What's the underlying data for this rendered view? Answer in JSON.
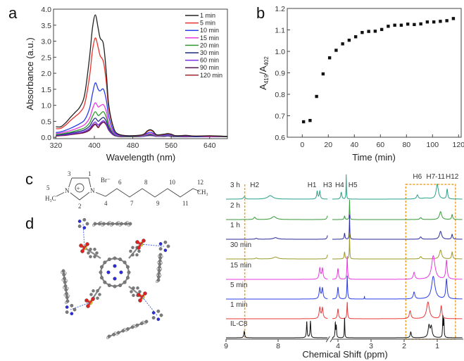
{
  "panel_labels": {
    "a": "a",
    "b": "b",
    "c": "c",
    "d": "d"
  },
  "chart_data": [
    {
      "id": "a",
      "type": "line",
      "xlabel": "Wavelength (nm)",
      "ylabel": "Absorbance (a.u.)",
      "xlim": [
        315,
        677
      ],
      "ylim": [
        -0.04,
        4.0
      ],
      "xticks": [
        320,
        400,
        480,
        560,
        640
      ],
      "yticks": [
        "0.0",
        "0.5",
        "1.0",
        "1.5",
        "2.0",
        "2.5",
        "3.0",
        "3.5",
        "4.0"
      ],
      "legend_position": "top-right",
      "x": [
        320,
        330,
        340,
        350,
        360,
        370,
        380,
        390,
        396,
        402,
        408,
        412,
        419,
        425,
        430,
        440,
        450,
        470,
        500,
        510,
        516,
        522,
        530,
        545,
        553,
        560,
        570,
        590,
        610,
        640,
        677
      ],
      "series": [
        {
          "name": "1 min",
          "color": "#222222",
          "values": [
            0.33,
            0.33,
            0.45,
            0.62,
            0.78,
            0.95,
            1.35,
            2.5,
            3.4,
            3.82,
            3.4,
            3.1,
            2.9,
            2.0,
            1.0,
            0.3,
            0.1,
            0.05,
            0.08,
            0.2,
            0.24,
            0.2,
            0.08,
            0.1,
            0.12,
            0.1,
            0.05,
            0.06,
            0.04,
            0.05,
            0.03
          ]
        },
        {
          "name": "5 min",
          "color": "#e8322e",
          "values": [
            0.27,
            0.28,
            0.38,
            0.52,
            0.65,
            0.78,
            1.05,
            1.9,
            2.7,
            3.1,
            2.8,
            2.55,
            2.35,
            1.7,
            0.9,
            0.28,
            0.1,
            0.05,
            0.07,
            0.18,
            0.22,
            0.18,
            0.07,
            0.09,
            0.11,
            0.09,
            0.05,
            0.06,
            0.04,
            0.04,
            0.03
          ]
        },
        {
          "name": "10 min",
          "color": "#2a3de8",
          "values": [
            0.15,
            0.17,
            0.22,
            0.28,
            0.35,
            0.43,
            0.55,
            0.9,
            1.35,
            1.7,
            1.5,
            1.45,
            1.5,
            1.15,
            0.65,
            0.2,
            0.08,
            0.04,
            0.06,
            0.13,
            0.16,
            0.13,
            0.06,
            0.07,
            0.08,
            0.07,
            0.04,
            0.05,
            0.03,
            0.04,
            0.03
          ]
        },
        {
          "name": "15 min",
          "color": "#e83ae0",
          "values": [
            0.12,
            0.13,
            0.17,
            0.21,
            0.26,
            0.32,
            0.4,
            0.6,
            0.88,
            1.08,
            0.95,
            0.98,
            1.02,
            0.8,
            0.45,
            0.15,
            0.06,
            0.04,
            0.05,
            0.1,
            0.12,
            0.1,
            0.05,
            0.06,
            0.07,
            0.06,
            0.04,
            0.04,
            0.03,
            0.03,
            0.03
          ]
        },
        {
          "name": "20 min",
          "color": "#2e9a2e",
          "values": [
            0.09,
            0.1,
            0.13,
            0.16,
            0.2,
            0.24,
            0.3,
            0.45,
            0.65,
            0.8,
            0.68,
            0.72,
            0.8,
            0.62,
            0.36,
            0.12,
            0.05,
            0.03,
            0.04,
            0.08,
            0.1,
            0.08,
            0.04,
            0.05,
            0.06,
            0.05,
            0.03,
            0.04,
            0.03,
            0.03,
            0.02
          ]
        },
        {
          "name": "30 min",
          "color": "#1e2a7a",
          "values": [
            0.07,
            0.08,
            0.1,
            0.13,
            0.16,
            0.19,
            0.24,
            0.35,
            0.5,
            0.6,
            0.5,
            0.55,
            0.62,
            0.5,
            0.3,
            0.1,
            0.04,
            0.03,
            0.04,
            0.07,
            0.08,
            0.07,
            0.04,
            0.04,
            0.05,
            0.04,
            0.03,
            0.03,
            0.02,
            0.03,
            0.02
          ]
        },
        {
          "name": "60 min",
          "color": "#7a2ee8",
          "values": [
            0.06,
            0.07,
            0.08,
            0.1,
            0.13,
            0.15,
            0.19,
            0.28,
            0.4,
            0.48,
            0.38,
            0.44,
            0.52,
            0.42,
            0.25,
            0.08,
            0.04,
            0.03,
            0.03,
            0.06,
            0.07,
            0.06,
            0.03,
            0.04,
            0.04,
            0.04,
            0.02,
            0.03,
            0.02,
            0.02,
            0.02
          ]
        },
        {
          "name": "90 min",
          "color": "#5a1a5a",
          "values": [
            0.05,
            0.06,
            0.07,
            0.09,
            0.11,
            0.13,
            0.16,
            0.24,
            0.35,
            0.42,
            0.32,
            0.4,
            0.48,
            0.4,
            0.23,
            0.07,
            0.03,
            0.02,
            0.03,
            0.05,
            0.06,
            0.05,
            0.03,
            0.03,
            0.04,
            0.03,
            0.02,
            0.02,
            0.02,
            0.02,
            0.02
          ]
        },
        {
          "name": "120 min",
          "color": "#a02830",
          "values": [
            0.04,
            0.05,
            0.06,
            0.08,
            0.1,
            0.12,
            0.15,
            0.22,
            0.32,
            0.4,
            0.3,
            0.38,
            0.47,
            0.38,
            0.22,
            0.07,
            0.03,
            0.02,
            0.03,
            0.05,
            0.06,
            0.05,
            0.03,
            0.03,
            0.04,
            0.03,
            0.02,
            0.02,
            0.02,
            0.02,
            0.02
          ]
        }
      ]
    },
    {
      "id": "b",
      "type": "scatter",
      "xlabel": "Time (min)",
      "ylabel": {
        "base": "A",
        "sub1": "419",
        "sep": "/A",
        "sub2": "402"
      },
      "xlim": [
        -11.5,
        122
      ],
      "ylim": [
        0.6,
        1.2
      ],
      "xticks": [
        0,
        20,
        40,
        60,
        80,
        100,
        120
      ],
      "yticks": [
        "0.6",
        "0.7",
        "0.8",
        "0.9",
        "1.0",
        "1.1",
        "1.2"
      ],
      "marker_color": "#111111",
      "x": [
        1,
        6,
        11,
        16,
        21,
        26,
        31,
        36,
        41,
        46,
        51,
        56,
        61,
        66,
        71,
        76,
        81,
        86,
        91,
        96,
        101,
        106,
        111,
        116
      ],
      "y": [
        0.672,
        0.678,
        0.79,
        0.895,
        0.97,
        1.005,
        1.035,
        1.052,
        1.068,
        1.088,
        1.093,
        1.094,
        1.102,
        1.117,
        1.122,
        1.122,
        1.127,
        1.125,
        1.128,
        1.137,
        1.137,
        1.14,
        1.143,
        1.153
      ]
    },
    {
      "id": "nmr",
      "type": "line",
      "xlabel": "Chemical Shift (ppm)",
      "axis_break": [
        7.05,
        4.17
      ],
      "xlim": [
        9.0,
        0.24
      ],
      "xticks": [
        9,
        8,
        4,
        3,
        2,
        1
      ],
      "highlight_color": "#f0a030",
      "highlight_line_ppm": 8.64,
      "highlight_box_ppm": [
        1.95,
        0.45
      ],
      "peak_labels": [
        {
          "text": "H2",
          "ppm": 8.45
        },
        {
          "text": "H1",
          "ppm": 7.35
        },
        {
          "text": "H3",
          "ppm": 7.05
        },
        {
          "text": "H4",
          "ppm": 3.95
        },
        {
          "text": "H5",
          "ppm": 3.55
        },
        {
          "text": "H6",
          "ppm": 1.6
        },
        {
          "text": "H7-11",
          "ppm": 1.05
        },
        {
          "text": "H12",
          "ppm": 0.55
        }
      ],
      "traces": [
        {
          "name": "3 h",
          "color": "#2aa08a",
          "peaks": [
            [
              8.65,
              0.12,
              0.02
            ],
            [
              8.15,
              0.18,
              0.06
            ],
            [
              7.25,
              0.4,
              0.012
            ],
            [
              7.2,
              0.4,
              0.012
            ],
            [
              3.9,
              0.35,
              0.02
            ],
            [
              3.75,
              1.25,
              0.008
            ],
            [
              1.6,
              0.2,
              0.03
            ],
            [
              1.35,
              0.05,
              0.15
            ],
            [
              1.0,
              0.75,
              0.04
            ],
            [
              0.7,
              0.5,
              0.02
            ]
          ]
        },
        {
          "name": "2 h",
          "color": "#3a9a3a",
          "peaks": [
            [
              8.45,
              0.12,
              0.02
            ],
            [
              8.08,
              0.15,
              0.05
            ],
            [
              7.05,
              0.18,
              0.015
            ],
            [
              7.0,
              0.18,
              0.015
            ],
            [
              3.8,
              0.18,
              0.015
            ],
            [
              3.65,
              1.0,
              0.008
            ],
            [
              1.5,
              0.1,
              0.03
            ],
            [
              0.9,
              0.4,
              0.04
            ],
            [
              0.55,
              0.25,
              0.02
            ]
          ]
        },
        {
          "name": "1 h",
          "color": "#2a2a9a",
          "peaks": [
            [
              8.42,
              0.05,
              0.02
            ],
            [
              8.05,
              0.08,
              0.05
            ],
            [
              7.05,
              0.18,
              0.012
            ],
            [
              7.02,
              0.18,
              0.012
            ],
            [
              3.8,
              0.3,
              0.015
            ],
            [
              3.65,
              1.25,
              0.008
            ],
            [
              1.5,
              0.12,
              0.03
            ],
            [
              0.9,
              0.4,
              0.04
            ],
            [
              0.55,
              0.25,
              0.02
            ]
          ]
        },
        {
          "name": "30 min",
          "color": "#9a9a2a",
          "peaks": [
            [
              8.42,
              0.05,
              0.02
            ],
            [
              8.05,
              0.1,
              0.05
            ],
            [
              7.05,
              0.2,
              0.012
            ],
            [
              7.02,
              0.2,
              0.012
            ],
            [
              3.8,
              0.35,
              0.015
            ],
            [
              3.65,
              1.25,
              0.008
            ],
            [
              1.5,
              0.12,
              0.03
            ],
            [
              0.9,
              0.45,
              0.04
            ],
            [
              0.55,
              0.35,
              0.02
            ]
          ]
        },
        {
          "name": "15 min",
          "color": "#e83ae0",
          "peaks": [
            [
              7.2,
              0.55,
              0.015
            ],
            [
              7.15,
              0.55,
              0.015
            ],
            [
              4.0,
              0.55,
              0.02
            ],
            [
              3.72,
              1.2,
              0.012
            ],
            [
              1.7,
              0.35,
              0.03
            ],
            [
              1.12,
              1.2,
              0.06
            ],
            [
              0.72,
              0.95,
              0.025
            ]
          ]
        },
        {
          "name": "5 min",
          "color": "#2a3de8",
          "peaks": [
            [
              7.2,
              0.55,
              0.015
            ],
            [
              7.15,
              0.55,
              0.015
            ],
            [
              4.0,
              0.6,
              0.02
            ],
            [
              3.72,
              1.2,
              0.012
            ],
            [
              3.2,
              0.15,
              0.005
            ],
            [
              1.7,
              0.35,
              0.03
            ],
            [
              1.12,
              1.15,
              0.06
            ],
            [
              0.72,
              1.0,
              0.025
            ]
          ]
        },
        {
          "name": "1 min",
          "color": "#e83a3a",
          "peaks": [
            [
              7.2,
              0.55,
              0.015
            ],
            [
              7.15,
              0.55,
              0.015
            ],
            [
              4.0,
              0.5,
              0.02
            ],
            [
              3.72,
              0.85,
              0.012
            ],
            [
              1.82,
              0.4,
              0.03
            ],
            [
              1.28,
              0.85,
              0.05
            ],
            [
              0.88,
              0.65,
              0.025
            ]
          ]
        },
        {
          "name": "IL-C8",
          "color": "#111111",
          "peaks": [
            [
              8.65,
              0.35,
              0.01
            ],
            [
              7.45,
              0.85,
              0.008
            ],
            [
              7.38,
              0.85,
              0.008
            ],
            [
              4.08,
              0.75,
              0.01
            ],
            [
              4.05,
              0.6,
              0.01
            ],
            [
              3.8,
              1.05,
              0.008
            ],
            [
              1.8,
              0.3,
              0.02
            ],
            [
              1.25,
              0.6,
              0.03
            ],
            [
              1.18,
              0.55,
              0.03
            ],
            [
              0.83,
              1.05,
              0.01
            ],
            [
              0.8,
              0.9,
              0.01
            ]
          ]
        }
      ]
    }
  ],
  "structure_c": {
    "counterion": "Br⁻",
    "methyl": "H₃C",
    "terminal": "CH₃",
    "charge": "+",
    "atom_numbers": [
      "1",
      "2",
      "3",
      "4",
      "5",
      "6",
      "7",
      "8",
      "9",
      "10",
      "11",
      "12"
    ],
    "ring_atoms": [
      "N",
      "N"
    ]
  },
  "model_d": {
    "atom_colors": {
      "carbon": "#7a7a7a",
      "hydrogen": "#e0e0e0",
      "nitrogen": "#2a2ae0",
      "oxygen": "#e02020",
      "sulfur": "#d8c820",
      "hbond": "#4a6ae8"
    }
  }
}
